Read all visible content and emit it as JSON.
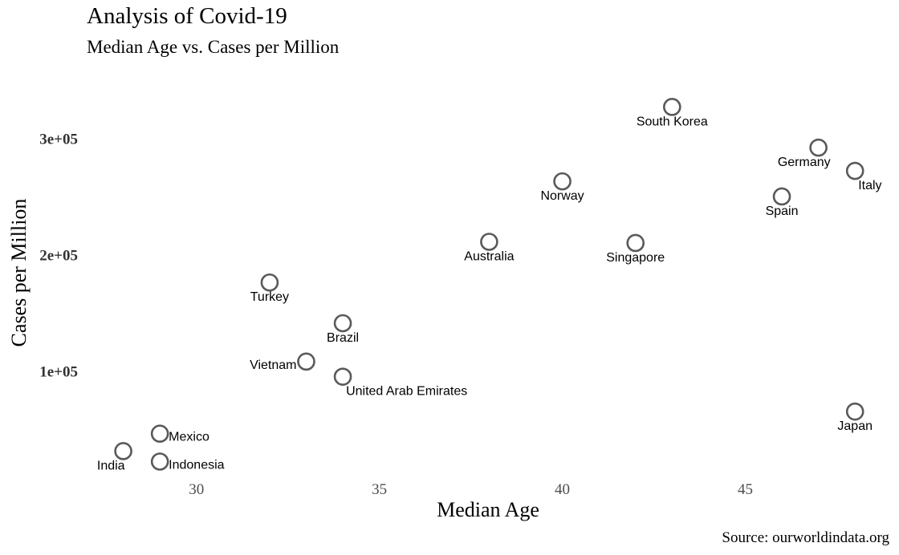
{
  "chart_data": {
    "type": "scatter",
    "title": "Analysis of Covid-19",
    "subtitle": "Median Age vs. Cases per Million",
    "xlabel": "Median Age",
    "ylabel": "Cases per Million",
    "caption": "Source: ourworldindata.org",
    "xlim": [
      27,
      48.5
    ],
    "ylim": [
      12000,
      350000
    ],
    "xticks": [
      {
        "value": 30,
        "label": "30"
      },
      {
        "value": 35,
        "label": "35"
      },
      {
        "value": 40,
        "label": "40"
      },
      {
        "value": 45,
        "label": "45"
      }
    ],
    "yticks": [
      {
        "value": 100000,
        "label": "1e+05"
      },
      {
        "value": 200000,
        "label": "2e+05"
      },
      {
        "value": 300000,
        "label": "3e+05"
      }
    ],
    "grid": false,
    "marker_color": "#595959",
    "points": [
      {
        "label": "South Korea",
        "x": 43,
        "y": 327000,
        "label_pos": "below"
      },
      {
        "label": "Germany",
        "x": 47,
        "y": 292000,
        "label_pos": "below-left"
      },
      {
        "label": "Italy",
        "x": 48,
        "y": 272000,
        "label_pos": "below-right"
      },
      {
        "label": "Norway",
        "x": 40,
        "y": 263000,
        "label_pos": "below"
      },
      {
        "label": "Spain",
        "x": 46,
        "y": 250000,
        "label_pos": "below"
      },
      {
        "label": "Australia",
        "x": 38,
        "y": 211000,
        "label_pos": "below"
      },
      {
        "label": "Singapore",
        "x": 42,
        "y": 210000,
        "label_pos": "below"
      },
      {
        "label": "Turkey",
        "x": 32,
        "y": 176000,
        "label_pos": "below"
      },
      {
        "label": "Brazil",
        "x": 34,
        "y": 141000,
        "label_pos": "below"
      },
      {
        "label": "Vietnam",
        "x": 33,
        "y": 108000,
        "label_pos": "left"
      },
      {
        "label": "United Arab Emirates",
        "x": 34,
        "y": 95000,
        "label_pos": "below-right"
      },
      {
        "label": "Japan",
        "x": 48,
        "y": 65000,
        "label_pos": "below"
      },
      {
        "label": "Mexico",
        "x": 29,
        "y": 46000,
        "label_pos": "right"
      },
      {
        "label": "India",
        "x": 28,
        "y": 31000,
        "label_pos": "below-left"
      },
      {
        "label": "Indonesia",
        "x": 29,
        "y": 22000,
        "label_pos": "right"
      }
    ]
  }
}
